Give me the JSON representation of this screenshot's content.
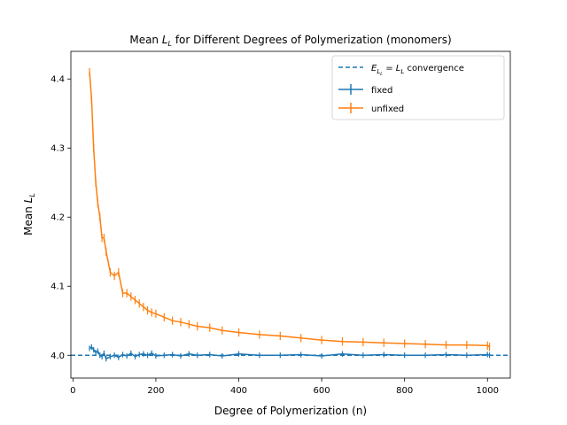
{
  "chart_data": {
    "type": "line",
    "title_prefix": "Mean ",
    "title_var": "L",
    "title_sub": "L",
    "title_suffix": " for Different Degrees of Polymerization (monomers)",
    "xlabel": "Degree of Polymerization (n)",
    "ylabel_prefix": "Mean ",
    "ylabel_var": "L",
    "ylabel_sub": "L",
    "xlim": [
      -5,
      1055
    ],
    "ylim": [
      3.967,
      4.44
    ],
    "xticks": [
      0,
      200,
      400,
      600,
      800,
      1000
    ],
    "yticks": [
      4.0,
      4.1,
      4.2,
      4.3,
      4.4
    ],
    "ytick_labels": [
      "4.0",
      "4.1",
      "4.2",
      "4.3",
      "4.4"
    ],
    "grid": false,
    "legend_position": "top-right",
    "reference_line": {
      "y": 4.0,
      "label_E": "E",
      "label_sub1": "L",
      "label_sub2": "L",
      "label_eq": " = ",
      "label_L": "L",
      "label_Lsub": "L",
      "label_rest": " convergence",
      "color": "#1f77b4",
      "style": "dashed"
    },
    "x": [
      40,
      45,
      50,
      55,
      60,
      65,
      70,
      75,
      80,
      90,
      100,
      110,
      120,
      130,
      140,
      150,
      160,
      170,
      180,
      190,
      200,
      220,
      240,
      260,
      280,
      300,
      330,
      360,
      400,
      450,
      500,
      550,
      600,
      650,
      700,
      750,
      800,
      850,
      900,
      950,
      1000,
      1005
    ],
    "series": [
      {
        "name": "fixed",
        "color": "#1f77b4",
        "values": [
          4.01,
          4.012,
          4.008,
          4.004,
          4.006,
          4.0,
          3.998,
          4.003,
          3.995,
          3.998,
          4.0,
          3.997,
          4.001,
          3.999,
          4.003,
          3.998,
          4.001,
          4.002,
          4.0,
          4.003,
          3.999,
          4.0,
          4.001,
          3.999,
          4.002,
          4.0,
          4.001,
          3.999,
          4.002,
          4.0,
          4.0,
          4.001,
          3.999,
          4.002,
          4.0,
          4.001,
          4.0,
          4.0,
          4.001,
          4.0,
          4.001,
          4.0
        ],
        "error": 0.004
      },
      {
        "name": "unfixed",
        "color": "#ff7f0e",
        "values": [
          4.41,
          4.37,
          4.3,
          4.25,
          4.22,
          4.2,
          4.17,
          4.17,
          4.15,
          4.12,
          4.115,
          4.12,
          4.09,
          4.09,
          4.085,
          4.08,
          4.075,
          4.07,
          4.065,
          4.062,
          4.06,
          4.055,
          4.05,
          4.048,
          4.045,
          4.042,
          4.04,
          4.036,
          4.033,
          4.03,
          4.028,
          4.025,
          4.022,
          4.02,
          4.019,
          4.018,
          4.017,
          4.016,
          4.015,
          4.015,
          4.014,
          4.012
        ],
        "error": 0.006
      }
    ]
  }
}
